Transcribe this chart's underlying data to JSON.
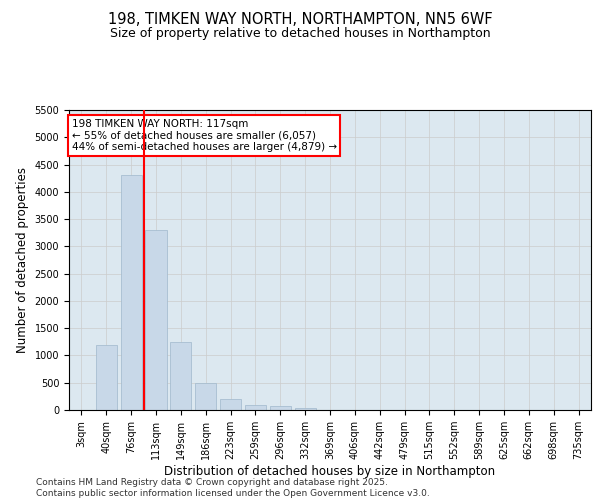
{
  "title_line1": "198, TIMKEN WAY NORTH, NORTHAMPTON, NN5 6WF",
  "title_line2": "Size of property relative to detached houses in Northampton",
  "xlabel": "Distribution of detached houses by size in Northampton",
  "ylabel": "Number of detached properties",
  "categories": [
    "3sqm",
    "40sqm",
    "76sqm",
    "113sqm",
    "149sqm",
    "186sqm",
    "223sqm",
    "259sqm",
    "296sqm",
    "332sqm",
    "369sqm",
    "406sqm",
    "442sqm",
    "479sqm",
    "515sqm",
    "552sqm",
    "589sqm",
    "625sqm",
    "662sqm",
    "698sqm",
    "735sqm"
  ],
  "values": [
    0,
    1200,
    4300,
    3300,
    1250,
    500,
    200,
    100,
    80,
    30,
    0,
    0,
    0,
    0,
    0,
    0,
    0,
    0,
    0,
    0,
    0
  ],
  "bar_color": "#c8d8e8",
  "bar_edge_color": "#a0b8cc",
  "vline_x_index": 2.5,
  "vline_color": "red",
  "annotation_line1": "198 TIMKEN WAY NORTH: 117sqm",
  "annotation_line2": "← 55% of detached houses are smaller (6,057)",
  "annotation_line3": "44% of semi-detached houses are larger (4,879) →",
  "annotation_box_color": "white",
  "annotation_box_edgecolor": "red",
  "ylim": [
    0,
    5500
  ],
  "yticks": [
    0,
    500,
    1000,
    1500,
    2000,
    2500,
    3000,
    3500,
    4000,
    4500,
    5000,
    5500
  ],
  "grid_color": "#cccccc",
  "bg_color": "#dce8f0",
  "footer_line1": "Contains HM Land Registry data © Crown copyright and database right 2025.",
  "footer_line2": "Contains public sector information licensed under the Open Government Licence v3.0.",
  "title_fontsize": 10.5,
  "subtitle_fontsize": 9,
  "axis_label_fontsize": 8.5,
  "tick_fontsize": 7,
  "annotation_fontsize": 7.5,
  "footer_fontsize": 6.5
}
